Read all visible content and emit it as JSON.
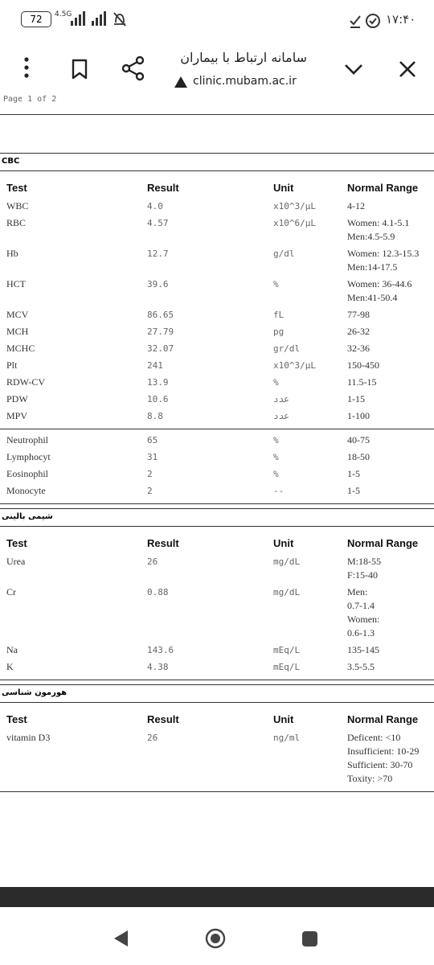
{
  "status_bar": {
    "battery": "72",
    "network": "4.5G",
    "time": "۱۷:۴۰"
  },
  "browser": {
    "title": "سامانه ارتباط با بیماران",
    "url": "clinic.mubam.ac.ir"
  },
  "page_label": "Page 1 of 2",
  "columns": [
    "Test",
    "Result",
    "Unit",
    "Normal Range"
  ],
  "sections": [
    {
      "title": "CBC",
      "groups": [
        [
          {
            "test": "WBC",
            "result": "4.0",
            "unit": "x10^3/µL",
            "range": [
              "4-12"
            ]
          },
          {
            "test": "RBC",
            "result": "4.57",
            "unit": "x10^6/µL",
            "range": [
              "Women: 4.1-5.1",
              "Men:4.5-5.9"
            ]
          },
          {
            "test": "Hb",
            "result": "12.7",
            "unit": "g/dl",
            "range": [
              "Women: 12.3-15.3",
              "Men:14-17.5"
            ]
          },
          {
            "test": "HCT",
            "result": "39.6",
            "unit": "%",
            "range": [
              "Women: 36-44.6",
              "Men:41-50.4"
            ]
          },
          {
            "test": "MCV",
            "result": "86.65",
            "unit": "fL",
            "range": [
              "77-98"
            ]
          },
          {
            "test": "MCH",
            "result": "27.79",
            "unit": "pg",
            "range": [
              "26-32"
            ]
          },
          {
            "test": "MCHC",
            "result": "32.07",
            "unit": "gr/dl",
            "range": [
              "32-36"
            ]
          },
          {
            "test": "Plt",
            "result": "241",
            "unit": "x10^3/µL",
            "range": [
              "150-450"
            ]
          },
          {
            "test": "RDW-CV",
            "result": "13.9",
            "unit": "%",
            "range": [
              "11.5-15"
            ]
          },
          {
            "test": "PDW",
            "result": "10.6",
            "unit": "عدد",
            "range": [
              "1-15"
            ]
          },
          {
            "test": "MPV",
            "result": "8.8",
            "unit": "عدد",
            "range": [
              "1-100"
            ]
          }
        ],
        [
          {
            "test": "Neutrophil",
            "result": "65",
            "unit": "%",
            "range": [
              "40-75"
            ]
          },
          {
            "test": "Lymphocyt",
            "result": "31",
            "unit": "%",
            "range": [
              "18-50"
            ]
          },
          {
            "test": "Eosinophil",
            "result": "2",
            "unit": "%",
            "range": [
              "1-5"
            ]
          },
          {
            "test": "Monocyte",
            "result": "2",
            "unit": "--",
            "range": [
              "1-5"
            ]
          }
        ]
      ]
    },
    {
      "title": "شیمی بالینی",
      "groups": [
        [
          {
            "test": "Urea",
            "result": "26",
            "unit": "mg/dL",
            "range": [
              "M:18-55",
              "F:15-40"
            ]
          },
          {
            "test": "Cr",
            "result": "0.88",
            "unit": "mg/dL",
            "range": [
              "Men:",
              "0.7-1.4",
              "Women:",
              "0.6-1.3"
            ]
          },
          {
            "test": "Na",
            "result": "143.6",
            "unit": "mEq/L",
            "range": [
              "135-145"
            ]
          },
          {
            "test": "K",
            "result": "4.38",
            "unit": "mEq/L",
            "range": [
              "3.5-5.5"
            ]
          }
        ]
      ]
    },
    {
      "title": "هورمون شناسی",
      "groups": [
        [
          {
            "test": "vitamin D3",
            "result": "26",
            "unit": "ng/ml",
            "range": [
              "Deficent: <10",
              "Insufficient: 10-29",
              "Sufficient: 30-70",
              "Toxity: >70"
            ]
          }
        ]
      ]
    }
  ]
}
